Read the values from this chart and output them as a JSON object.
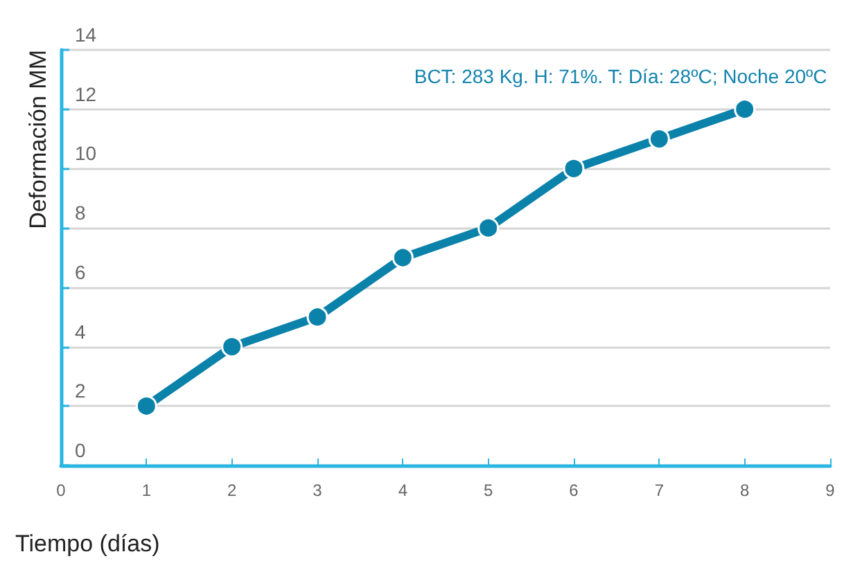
{
  "chart_data": {
    "type": "line",
    "xlabel": "Tiempo (días)",
    "ylabel": "Deformación MM",
    "annotations": [
      "BCT: 283 Kg. H: 71%. T: Día: 28ºC; Noche 20ºC"
    ],
    "x": [
      1,
      2,
      3,
      4,
      5,
      6,
      7,
      8
    ],
    "series": [
      {
        "color": "#0a82aa",
        "values": [
          2,
          4,
          5,
          7,
          8,
          10,
          11,
          12
        ]
      }
    ],
    "xlim": [
      0,
      9
    ],
    "xticks": [
      0,
      1,
      2,
      3,
      4,
      5,
      6,
      7,
      8,
      9
    ],
    "ylim": [
      0,
      14
    ],
    "yticks": [
      0,
      2,
      4,
      6,
      8,
      10,
      12,
      14
    ],
    "grid": "y",
    "marker": "circle",
    "line_style": "solid"
  }
}
